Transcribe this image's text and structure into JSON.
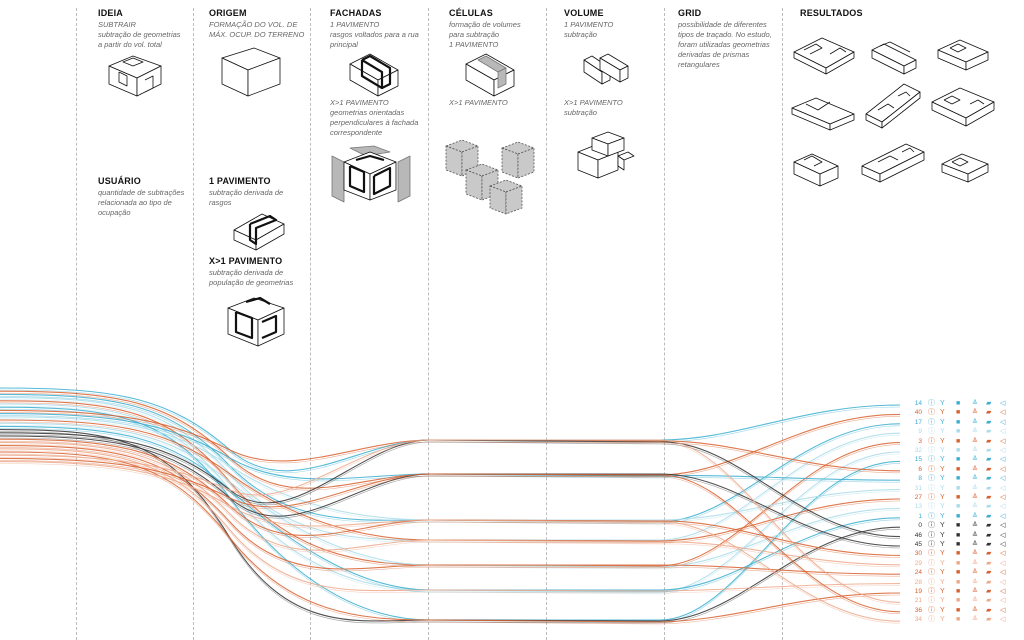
{
  "columns": [
    {
      "id": "ideia",
      "title": "IDEIA",
      "desc_lines": [
        "SUBTRAIR",
        "subtração de geometrias",
        "a partir do vol. total"
      ]
    },
    {
      "id": "usuario",
      "title": "USUÁRIO",
      "desc_lines": [
        "quantidade de subtrações",
        "relacionada ao tipo de",
        "ocupação"
      ]
    },
    {
      "id": "origem",
      "title": "ORIGEM",
      "desc_lines": [
        "FORMAÇÃO DO VOL. DE",
        "MÁX. OCUP. DO TERRENO"
      ]
    },
    {
      "id": "origem_1pav",
      "title": "1 PAVIMENTO",
      "desc_lines": [
        "subtração derivada de",
        "rasgos"
      ]
    },
    {
      "id": "origem_xpav",
      "title": "X>1 PAVIMENTO",
      "desc_lines": [
        "subtração derivada de",
        "população de geometrias"
      ]
    },
    {
      "id": "fachadas",
      "title": "FACHADAS",
      "desc_lines": [
        "1 PAVIMENTO",
        "rasgos voltados para a rua",
        "principal"
      ]
    },
    {
      "id": "fachadas_x",
      "title": "",
      "desc_lines": [
        "X>1 PAVIMENTO",
        "geometrias orientadas",
        "perpendiculares à fachada",
        "correspondente"
      ]
    },
    {
      "id": "celulas",
      "title": "CÉLULAS",
      "desc_lines": [
        "formação de volumes",
        "para subtração",
        "1 PAVIMENTO"
      ]
    },
    {
      "id": "celulas_x",
      "title": "",
      "desc_lines": [
        "X>1 PAVIMENTO"
      ]
    },
    {
      "id": "volume",
      "title": "VOLUME",
      "desc_lines": [
        "1 PAVIMENTO",
        "subtração"
      ]
    },
    {
      "id": "volume_x",
      "title": "",
      "desc_lines": [
        "X>1 PAVIMENTO",
        "subtração"
      ]
    },
    {
      "id": "grid",
      "title": "GRID",
      "desc_lines": [
        "possibilidade de diferentes",
        "tipos de traçado. No estudo,",
        "foram utilizadas geometrias",
        "derivadas de prismas",
        "retangulares"
      ]
    },
    {
      "id": "resultados",
      "title": "RESULTADOS",
      "desc_lines": []
    }
  ],
  "legend_numbers": [
    "14",
    "40",
    "17",
    "9",
    "3",
    "32",
    "15",
    "6",
    "8",
    "31",
    "27",
    "13",
    "1",
    "0",
    "46",
    "45",
    "30",
    "29",
    "24",
    "28",
    "19",
    "21",
    "36",
    "34"
  ],
  "colors": {
    "cyan": "#3aaed0",
    "cyan_light": "#a9dcea",
    "orange": "#d8602e",
    "orange_light": "#eda88a",
    "dark": "#333333",
    "divider": "#bdbdbd"
  }
}
